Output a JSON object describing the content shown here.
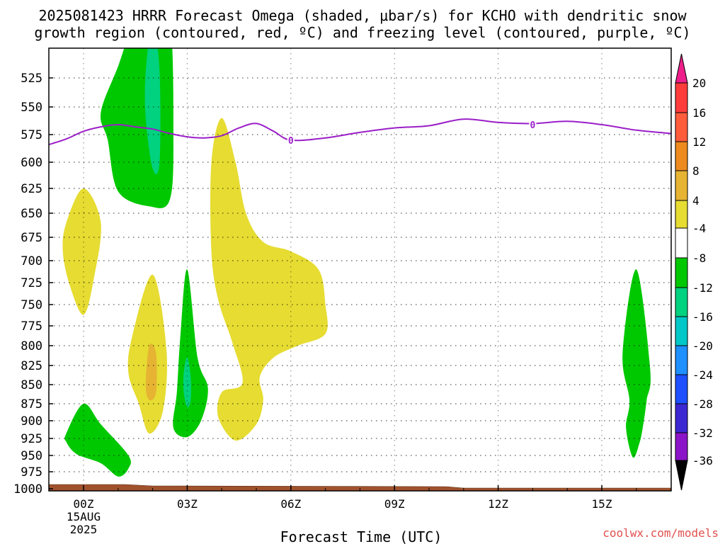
{
  "chart_data": {
    "type": "contour",
    "title_line1": "2025081423 HRRR Forecast Omega (shaded, μbar/s) for KCHO with dendritic snow",
    "title_line2": "growth region (contoured, red, ºC) and freezing level (contoured, purple, ºC)",
    "xlabel": "Forecast Time (UTC)",
    "x_ticks": [
      "00Z",
      "03Z",
      "06Z",
      "09Z",
      "12Z",
      "15Z"
    ],
    "x_date_label": "15AUG",
    "x_year_label": "2025",
    "y_ticks": [
      525,
      550,
      575,
      600,
      625,
      650,
      675,
      700,
      725,
      750,
      775,
      800,
      825,
      850,
      875,
      900,
      925,
      950,
      975,
      1000
    ],
    "colorbar_labels": [
      "20",
      "16",
      "12",
      "8",
      "4",
      "-4",
      "-8",
      "-12",
      "-16",
      "-20",
      "-24",
      "-28",
      "-32",
      "-36"
    ],
    "colorbar_colors": [
      "#ff3c3c",
      "#ff5c3c",
      "#ee8a1e",
      "#e6b432",
      "#e6dc32",
      "#ffffff",
      "#00c800",
      "#00d27f",
      "#00c8c8",
      "#1e90ff",
      "#1e50ff",
      "#3c28d2",
      "#8c14c8",
      "#aaaaaa"
    ],
    "colorbar_top_color": "#ee1e8a",
    "colorbar_bottom_color": "#000000",
    "freezing_level_color": "#9b1ec8",
    "freezing_level_label": "0",
    "freezing_level_hPa": [
      [
        -1.0,
        584
      ],
      [
        -0.5,
        579
      ],
      [
        0.0,
        572
      ],
      [
        0.5,
        568
      ],
      [
        1.0,
        566
      ],
      [
        1.5,
        568
      ],
      [
        2.0,
        570
      ],
      [
        2.5,
        574
      ],
      [
        3.0,
        577
      ],
      [
        3.5,
        578
      ],
      [
        4.0,
        576
      ],
      [
        4.5,
        569
      ],
      [
        5.0,
        565
      ],
      [
        5.5,
        572
      ],
      [
        6.0,
        580
      ],
      [
        7.0,
        578
      ],
      [
        8.0,
        573
      ],
      [
        9.0,
        569
      ],
      [
        10.0,
        567
      ],
      [
        11.0,
        561
      ],
      [
        12.0,
        564
      ],
      [
        13.0,
        565
      ],
      [
        14.0,
        563
      ],
      [
        15.0,
        566
      ],
      [
        16.0,
        571
      ],
      [
        17.0,
        574
      ]
    ],
    "freezing_level_label_positions": [
      [
        6.0,
        580
      ],
      [
        13.0,
        566
      ]
    ],
    "omega_regions": [
      {
        "level": "4 to 8",
        "color": "#e6dc32",
        "points": [
          [
            -0.5,
            660
          ],
          [
            0.0,
            625
          ],
          [
            0.5,
            660
          ],
          [
            0.3,
            720
          ],
          [
            0.0,
            762
          ],
          [
            -0.4,
            728
          ],
          [
            -0.6,
            690
          ]
        ]
      },
      {
        "level": "4 to 8",
        "color": "#e6dc32",
        "points": [
          [
            1.4,
            790
          ],
          [
            2.0,
            716
          ],
          [
            2.4,
            805
          ],
          [
            2.3,
            885
          ],
          [
            1.9,
            918
          ],
          [
            1.6,
            875
          ],
          [
            1.3,
            835
          ]
        ]
      },
      {
        "level": "8 to 12",
        "color": "#e6b432",
        "points": [
          [
            1.8,
            850
          ],
          [
            1.9,
            800
          ],
          [
            2.1,
            810
          ],
          [
            2.1,
            860
          ],
          [
            1.9,
            870
          ]
        ]
      },
      {
        "level": "4 to 8",
        "color": "#e6dc32",
        "points": [
          [
            3.7,
            600
          ],
          [
            4.0,
            560
          ],
          [
            4.4,
            600
          ],
          [
            4.7,
            650
          ],
          [
            5.2,
            680
          ],
          [
            6.0,
            690
          ],
          [
            6.8,
            710
          ],
          [
            7.0,
            750
          ],
          [
            7.0,
            785
          ],
          [
            6.2,
            800
          ],
          [
            5.5,
            815
          ],
          [
            5.1,
            840
          ],
          [
            5.2,
            870
          ],
          [
            5.0,
            905
          ],
          [
            4.4,
            928
          ],
          [
            3.9,
            895
          ],
          [
            4.0,
            860
          ],
          [
            4.6,
            848
          ],
          [
            4.3,
            795
          ],
          [
            3.9,
            745
          ],
          [
            3.7,
            690
          ]
        ]
      },
      {
        "level": "-4 to -8",
        "color": "#00c800",
        "points": [
          [
            0.5,
            555
          ],
          [
            1.0,
            515
          ],
          [
            1.5,
            475
          ],
          [
            2.0,
            475
          ],
          [
            2.5,
            475
          ],
          [
            2.6,
            570
          ],
          [
            2.5,
            636
          ],
          [
            1.9,
            643
          ],
          [
            1.0,
            628
          ],
          [
            0.7,
            580
          ]
        ]
      },
      {
        "level": "-8 to -12",
        "color": "#00d27f",
        "points": [
          [
            1.8,
            520
          ],
          [
            2.0,
            475
          ],
          [
            2.2,
            520
          ],
          [
            2.2,
            600
          ],
          [
            2.0,
            606
          ],
          [
            1.8,
            560
          ]
        ]
      },
      {
        "level": "-4 to -8",
        "color": "#00c800",
        "points": [
          [
            2.8,
            790
          ],
          [
            3.0,
            710
          ],
          [
            3.3,
            815
          ],
          [
            3.6,
            855
          ],
          [
            3.4,
            900
          ],
          [
            3.0,
            923
          ],
          [
            2.6,
            910
          ],
          [
            2.7,
            860
          ]
        ]
      },
      {
        "level": "-8 to -12",
        "color": "#00d27f",
        "points": [
          [
            2.9,
            835
          ],
          [
            3.0,
            815
          ],
          [
            3.1,
            840
          ],
          [
            3.1,
            870
          ],
          [
            3.0,
            880
          ],
          [
            2.9,
            860
          ]
        ]
      },
      {
        "level": "-4 to -8",
        "color": "#00c800",
        "points": [
          [
            -0.5,
            918
          ],
          [
            0.0,
            875
          ],
          [
            0.5,
            905
          ],
          [
            1.3,
            950
          ],
          [
            1.3,
            970
          ],
          [
            1.0,
            982
          ],
          [
            0.5,
            962
          ],
          [
            -0.2,
            948
          ],
          [
            -0.5,
            930
          ]
        ]
      },
      {
        "level": "-4 to -8",
        "color": "#00c800",
        "points": [
          [
            15.6,
            810
          ],
          [
            16.0,
            710
          ],
          [
            16.4,
            830
          ],
          [
            16.3,
            870
          ],
          [
            16.2,
            905
          ],
          [
            16.1,
            930
          ],
          [
            15.9,
            953
          ],
          [
            15.7,
            910
          ],
          [
            15.8,
            870
          ]
        ]
      }
    ],
    "terrain_color": "#a0522d"
  },
  "credit": "coolwx.com/models"
}
